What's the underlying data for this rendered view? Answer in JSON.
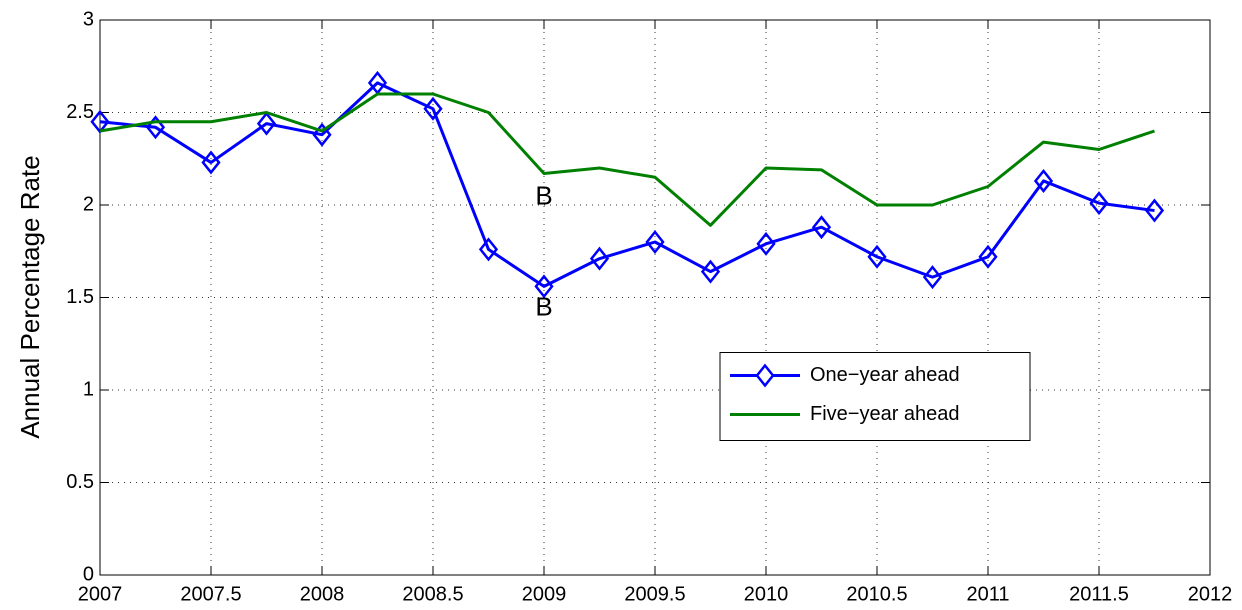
{
  "chart_data": {
    "type": "line",
    "ylabel": "Annual Percentage Rate",
    "x": [
      2007,
      2007.25,
      2007.5,
      2007.75,
      2008,
      2008.25,
      2008.5,
      2008.75,
      2009,
      2009.25,
      2009.5,
      2009.75,
      2010,
      2010.25,
      2010.5,
      2010.75,
      2011,
      2011.25,
      2011.5,
      2011.75
    ],
    "series": [
      {
        "name": "One−year ahead",
        "color": "#0000ff",
        "marker": "diamond",
        "values": [
          2.45,
          2.42,
          2.23,
          2.44,
          2.38,
          2.66,
          2.52,
          1.76,
          1.56,
          1.71,
          1.8,
          1.64,
          1.79,
          1.88,
          1.72,
          1.61,
          1.72,
          2.13,
          2.01,
          1.97
        ]
      },
      {
        "name": "Five−year ahead",
        "color": "#008000",
        "marker": "none",
        "values": [
          2.4,
          2.45,
          2.45,
          2.5,
          2.4,
          2.6,
          2.6,
          2.5,
          2.17,
          2.2,
          2.15,
          1.89,
          2.2,
          2.19,
          2.0,
          2.0,
          2.1,
          2.34,
          2.3,
          2.4
        ]
      }
    ],
    "annotations": [
      {
        "text": "B",
        "x": 2009,
        "y": 2.04
      },
      {
        "text": "B",
        "x": 2009,
        "y": 1.44
      }
    ],
    "xlim": [
      2007,
      2012
    ],
    "xticks": [
      2007,
      2007.5,
      2008,
      2008.5,
      2009,
      2009.5,
      2010,
      2010.5,
      2011,
      2011.5,
      2012
    ],
    "ylim": [
      0,
      3
    ],
    "yticks": [
      0,
      0.5,
      1,
      1.5,
      2,
      2.5,
      3
    ],
    "grid": true,
    "legend": "center right"
  }
}
